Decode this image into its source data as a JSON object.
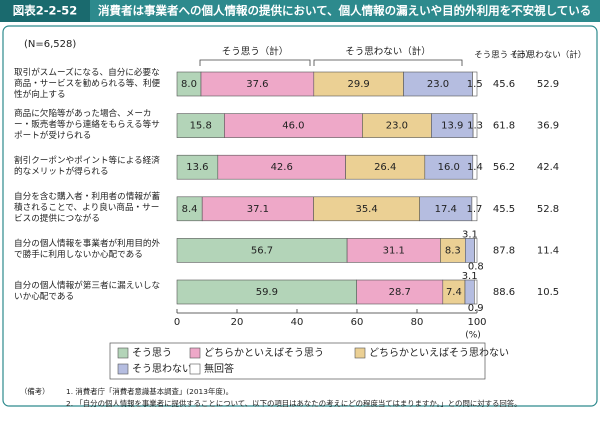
{
  "header": {
    "label": "図表2-2-52",
    "title": "消費者は事業者への個人情報の提供において、個人情報の漏えいや目的外利用を不安視している"
  },
  "chart_data": {
    "type": "stacked-bar-horizontal",
    "sample_note": "(N=6,528)",
    "categories": [
      "取引がスムーズになる、自分に必要な商品・サービスを勧められる等、利便性が向上する",
      "商品に欠陥等があった場合、メーカー・販売者等から連絡をもらえる等サポートが受けられる",
      "割引クーポンやポイント等による経済的なメリットが得られる",
      "自分を含む購入者・利用者の情報が蓄積されることで、より良い商品・サービスの提供につながる",
      "自分の個人情報を事業者が利用目的外で勝手に利用しないか心配である",
      "自分の個人情報が第三者に漏えいしないか心配である"
    ],
    "series": [
      {
        "name": "そう思う",
        "color": "#b3d4b8",
        "values": [
          8.0,
          15.8,
          13.6,
          8.4,
          56.7,
          59.9
        ],
        "value_labels": [
          "8.0",
          "15.8",
          "13.6",
          "8.4",
          "56.7",
          "59.9"
        ]
      },
      {
        "name": "どちらかといえばそう思う",
        "color": "#eea8c8",
        "values": [
          37.6,
          46.0,
          42.6,
          37.1,
          31.1,
          28.7
        ],
        "value_labels": [
          "37.6",
          "46.0",
          "42.6",
          "37.1",
          "31.1",
          "28.7"
        ]
      },
      {
        "name": "どちらかといえばそう思わない",
        "color": "#ebd094",
        "values": [
          29.9,
          23.0,
          26.4,
          35.4,
          8.3,
          7.4
        ],
        "value_labels": [
          "29.9",
          "23.0",
          "26.4",
          "35.4",
          "8.3",
          "7.4"
        ]
      },
      {
        "name": "そう思わない",
        "color": "#b5bde0",
        "values": [
          23.0,
          13.9,
          16.0,
          17.4,
          3.1,
          3.1
        ],
        "value_labels": [
          "23.0",
          "13.9",
          "16.0",
          "17.4",
          "3.1",
          "3.1"
        ]
      },
      {
        "name": "無回答",
        "color": "#ffffff",
        "values": [
          1.5,
          1.3,
          1.4,
          1.7,
          0.8,
          0.9
        ]
      }
    ],
    "brackets": [
      "そう思う（計）",
      "そう思わない（計）"
    ],
    "totals": [
      {
        "label": "そう思う（計）",
        "values": [
          45.6,
          61.8,
          56.2,
          45.5,
          87.8,
          88.6
        ]
      },
      {
        "label": "そう思わない（計）",
        "values": [
          52.9,
          36.9,
          42.4,
          52.8,
          11.4,
          10.5
        ]
      }
    ],
    "xlim": [
      0,
      100
    ],
    "xticks": [
      0,
      20,
      40,
      60,
      80,
      100
    ],
    "x_unit": "(%)"
  },
  "notes": {
    "label": "（備考）",
    "items": [
      "1.  消費者庁「消費者意識基本調査」(2013年度)。",
      "2.  「自分の個人情報を事業者に提供することについて、以下の項目はあなたの考えにどの程度当てはまりますか。」との問に対する回答。"
    ]
  }
}
